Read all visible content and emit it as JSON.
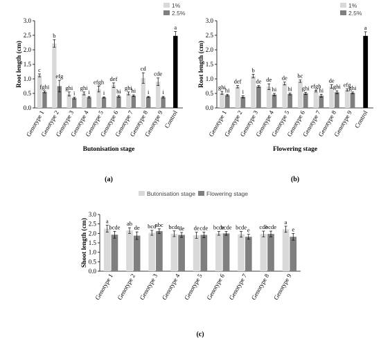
{
  "chart_data": [
    {
      "panel": "a",
      "caption": "(a)",
      "type": "bar",
      "xlabel": "Butonisation stage",
      "ylabel": "Root length (cm)",
      "ylim": [
        0,
        3.0
      ],
      "yticks": [
        "0.0",
        "0.5",
        "1.0",
        "1.5",
        "2.0",
        "2.5",
        "3.0"
      ],
      "grid": false,
      "legend_position": "top-right",
      "categories": [
        "Genotype 1",
        "Genotype 2",
        "Genotype 3",
        "Genotype 4",
        "Genotype 5",
        "Genotype 6",
        "Genotype 7",
        "Genotype 8",
        "Genotype 9"
      ],
      "series": [
        {
          "name": "1%",
          "color": "#d9d9d9",
          "values": [
            1.12,
            2.22,
            0.48,
            0.5,
            0.65,
            0.78,
            0.5,
            1.03,
            0.9
          ],
          "errors": [
            0.05,
            0.13,
            0.07,
            0.05,
            0.1,
            0.08,
            0.05,
            0.18,
            0.13
          ],
          "letters": [
            "c",
            "b",
            "ghi",
            "ghi",
            "efgh",
            "def",
            "ghi",
            "cd",
            "cde"
          ]
        },
        {
          "name": "2.5%",
          "color": "#7f7f7f",
          "values": [
            0.55,
            0.75,
            0.34,
            0.37,
            0.36,
            0.4,
            0.42,
            0.38,
            0.37
          ],
          "errors": [
            0.03,
            0.2,
            0.03,
            0.03,
            0.02,
            0.03,
            0.03,
            0.02,
            0.03
          ],
          "letters": [
            "fghi",
            "efg",
            "i",
            "i",
            "i",
            "hi",
            "hi",
            "i",
            "i"
          ]
        }
      ],
      "control": {
        "category": "Control",
        "value": 2.48,
        "error": 0.15,
        "letter": "a",
        "color": "#000000"
      }
    },
    {
      "panel": "b",
      "caption": "(b)",
      "type": "bar",
      "xlabel": "Flowering stage",
      "ylabel": "Root length (cm)",
      "ylim": [
        0,
        3.0
      ],
      "yticks": [
        "0.0",
        "0.5",
        "1.0",
        "1.5",
        "2.0",
        "2.5",
        "3.0"
      ],
      "grid": false,
      "legend_position": "top-right",
      "categories": [
        "Genotype 1",
        "Genotype 2",
        "Genotype 3",
        "Genotype 4",
        "Genotype 5",
        "Genotype 6",
        "Genotype 7",
        "Genotype 8",
        "Genotype 9"
      ],
      "series": [
        {
          "name": "1%",
          "color": "#d9d9d9",
          "values": [
            0.52,
            0.73,
            1.1,
            0.73,
            0.84,
            0.92,
            0.58,
            0.74,
            0.62
          ],
          "errors": [
            0.05,
            0.04,
            0.06,
            0.1,
            0.05,
            0.04,
            0.03,
            0.06,
            0.04
          ],
          "letters": [
            "ghi",
            "def",
            "b",
            "de",
            "de",
            "bc",
            "efgh",
            "de",
            "efg"
          ]
        },
        {
          "name": "2.5%",
          "color": "#7f7f7f",
          "values": [
            0.44,
            0.38,
            0.74,
            0.46,
            0.48,
            0.5,
            0.42,
            0.54,
            0.52
          ],
          "errors": [
            0.03,
            0.04,
            0.03,
            0.04,
            0.03,
            0.04,
            0.05,
            0.05,
            0.03
          ],
          "letters": [
            "hi",
            "i",
            "de",
            "hi",
            "hi",
            "ghi",
            "hi",
            "ghi",
            "ghi"
          ]
        }
      ],
      "control": {
        "category": "Control",
        "value": 2.48,
        "error": 0.14,
        "letter": "a",
        "color": "#000000"
      }
    },
    {
      "panel": "c",
      "caption": "(c)",
      "type": "bar",
      "xlabel": "",
      "ylabel": "Shoot length (cm)",
      "ylim": [
        0,
        3.0
      ],
      "yticks": [
        "0.0",
        "0.5",
        "1.0",
        "1.5",
        "2.0",
        "2.5",
        "3.0"
      ],
      "grid": false,
      "legend_position": "top-center",
      "categories": [
        "Genotype 1",
        "Genotype 2",
        "Genotype 3",
        "Genotype 4",
        "Genotype 5",
        "Genotype 6",
        "Genotype 7",
        "Genotype 8",
        "Genotype 9"
      ],
      "series": [
        {
          "name": "Butonisation stage",
          "color": "#d9d9d9",
          "values": [
            2.25,
            2.15,
            2.03,
            1.98,
            1.9,
            2.0,
            1.95,
            1.97,
            2.22
          ],
          "errors": [
            0.18,
            0.15,
            0.13,
            0.15,
            0.16,
            0.1,
            0.15,
            0.15,
            0.16
          ],
          "letters": [
            "a",
            "ab",
            "bcd",
            "bcde",
            "de",
            "bcde",
            "bcde",
            "cde",
            "a"
          ]
        },
        {
          "name": "Flowering stage",
          "color": "#7f7f7f",
          "values": [
            1.93,
            1.88,
            2.12,
            1.92,
            1.92,
            2.0,
            1.82,
            1.97,
            1.82
          ],
          "errors": [
            0.18,
            0.2,
            0.12,
            0.13,
            0.15,
            0.1,
            0.13,
            0.15,
            0.18
          ],
          "letters": [
            "bcde",
            "de",
            "abc",
            "de",
            "cde",
            "bcde",
            "e",
            "bcde",
            "e"
          ]
        }
      ]
    }
  ]
}
